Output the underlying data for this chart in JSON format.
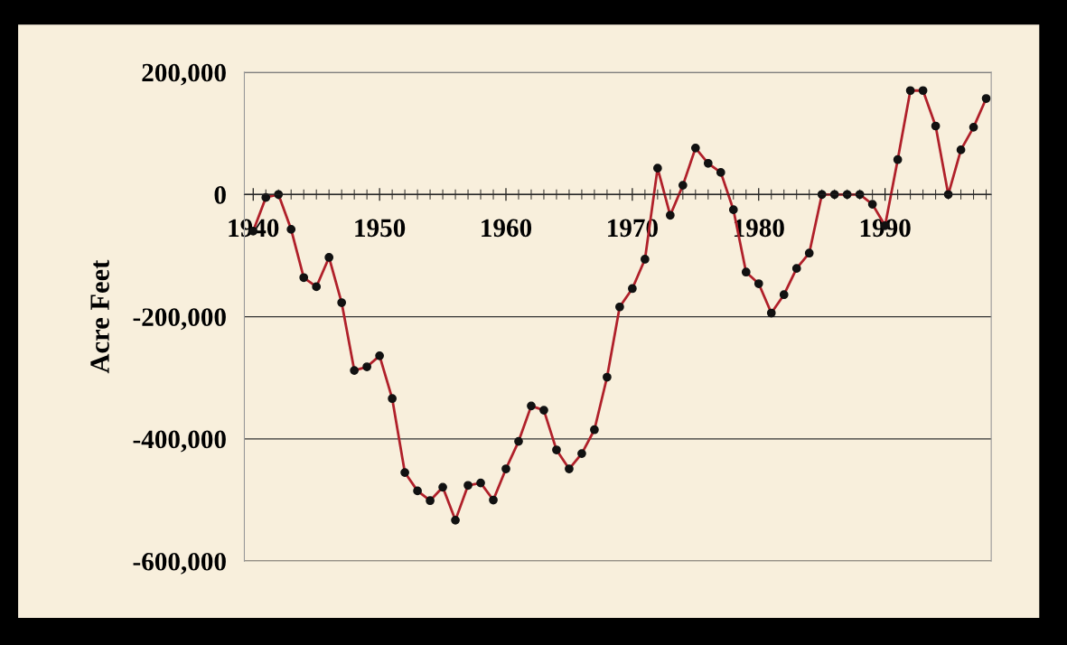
{
  "chart_data": {
    "type": "line",
    "ylabel": "Acre Feet",
    "x": [
      1940,
      1941,
      1942,
      1943,
      1944,
      1945,
      1946,
      1947,
      1948,
      1949,
      1950,
      1951,
      1952,
      1953,
      1954,
      1955,
      1956,
      1957,
      1958,
      1959,
      1960,
      1961,
      1962,
      1963,
      1964,
      1965,
      1966,
      1967,
      1968,
      1969,
      1970,
      1971,
      1972,
      1973,
      1974,
      1975,
      1976,
      1977,
      1978,
      1979,
      1980,
      1981,
      1982,
      1983,
      1984,
      1985,
      1986,
      1987,
      1988,
      1989,
      1990,
      1991,
      1992,
      1993,
      1994,
      1995,
      1996,
      1997,
      1998
    ],
    "series": [
      {
        "color": "#b0202a",
        "values": [
          -60000,
          -5000,
          0,
          -57000,
          -136000,
          -151000,
          -103000,
          -177000,
          -288000,
          -282000,
          -264000,
          -334000,
          -455000,
          -485000,
          -501000,
          -479000,
          -533000,
          -476000,
          -472000,
          -500000,
          -449000,
          -404000,
          -346000,
          -353000,
          -418000,
          -449000,
          -424000,
          -385000,
          -299000,
          -184000,
          -154000,
          -106000,
          43000,
          -34000,
          15000,
          76000,
          51000,
          36000,
          -25000,
          -127000,
          -146000,
          -194000,
          -164000,
          -121000,
          -96000,
          0,
          0,
          0,
          0,
          -16000,
          -51000,
          57000,
          170000,
          170000,
          112000,
          0,
          73000,
          110000,
          157000
        ]
      }
    ],
    "xlim": [
      1939.3,
      1998.4
    ],
    "xticks": [
      1940,
      1950,
      1960,
      1970,
      1980,
      1990
    ],
    "ylim": [
      -600000,
      200000
    ],
    "yticks": [
      {
        "value": -600000,
        "label": "-600,000"
      },
      {
        "value": -400000,
        "label": "-400,000"
      },
      {
        "value": -200000,
        "label": "-200,000"
      },
      {
        "value": 0,
        "label": "0"
      },
      {
        "value": 200000,
        "label": "200,000"
      }
    ],
    "grid": "y",
    "marker": "circle",
    "line_style": "solid",
    "legend": false
  }
}
